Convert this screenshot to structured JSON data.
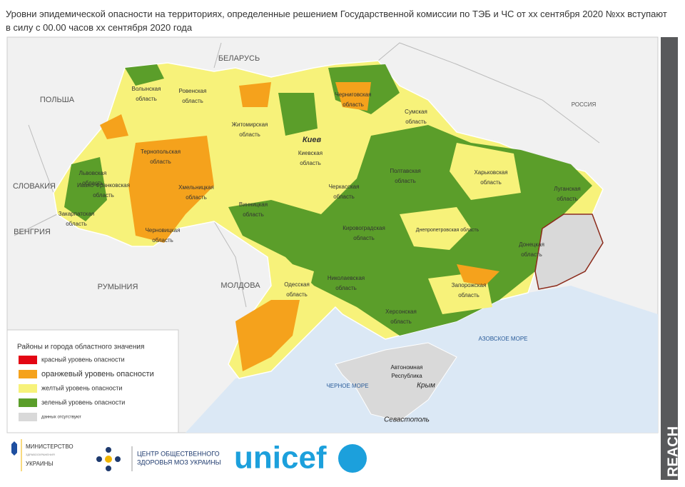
{
  "title": "Уровни эпидемической опасности на территориях, определенные решением Государственной комиссии по ТЭБ и ЧС от хх сентября 2020 №хх вступают в силу с 00.00 часов хх сентября 2020 года",
  "map": {
    "countries": [
      "БЕЛАРУСЬ",
      "ПОЛЬША",
      "РОССИЯ",
      "СЛОВАКИЯ",
      "ВЕНГРИЯ",
      "РУМЫНИЯ",
      "МОЛДОВА"
    ],
    "seas": [
      "АЗОВСКОЕ МОРЕ",
      "ЧЕРНОЕ МОРЕ"
    ],
    "regions": [
      {
        "lines": [
          "Волынская",
          "область"
        ]
      },
      {
        "lines": [
          "Ровенская",
          "область"
        ]
      },
      {
        "lines": [
          "Житомирская",
          "область"
        ]
      },
      {
        "lines": [
          "Киев"
        ]
      },
      {
        "lines": [
          "Киевская",
          "область"
        ]
      },
      {
        "lines": [
          "Черниговская",
          "область"
        ]
      },
      {
        "lines": [
          "Сумская",
          "область"
        ]
      },
      {
        "lines": [
          "Харьковская",
          "область"
        ]
      },
      {
        "lines": [
          "Полтавская",
          "область"
        ]
      },
      {
        "lines": [
          "Луганская",
          "область"
        ]
      },
      {
        "lines": [
          "Донецкая",
          "область"
        ]
      },
      {
        "lines": [
          "Днепропетровская область"
        ]
      },
      {
        "lines": [
          "Запорожская",
          "область"
        ]
      },
      {
        "lines": [
          "Херсонская",
          "область"
        ]
      },
      {
        "lines": [
          "Николаевская",
          "область"
        ]
      },
      {
        "lines": [
          "Одесская",
          "область"
        ]
      },
      {
        "lines": [
          "Кировоградская",
          "область"
        ]
      },
      {
        "lines": [
          "Винницкая",
          "область"
        ]
      },
      {
        "lines": [
          "Черкасская",
          "область"
        ]
      },
      {
        "lines": [
          "Хмельницкая",
          "область"
        ]
      },
      {
        "lines": [
          "Тернопольская",
          "область"
        ]
      },
      {
        "lines": [
          "Львовская",
          "область"
        ]
      },
      {
        "lines": [
          "Ивано-Франковская",
          "область"
        ]
      },
      {
        "lines": [
          "Закарпатская",
          "область"
        ]
      },
      {
        "lines": [
          "Черновицкая",
          "область"
        ]
      }
    ],
    "crimea": [
      "Автономная",
      "Республика",
      "Крым",
      "Севастополь"
    ]
  },
  "legend": {
    "title": "Районы и города областного значения",
    "items": [
      {
        "label": "красный уровень опасности",
        "color": "#e30613"
      },
      {
        "label": "оранжевый уровень опасности",
        "color": "#f5a21c"
      },
      {
        "label": "желтый уровень опасности",
        "color": "#f7f27a"
      },
      {
        "label": "зеленый уровень опасности",
        "color": "#5b9e2a"
      },
      {
        "label": "данных отсутствуют",
        "color": "#d9d9d9"
      }
    ]
  },
  "footer": {
    "ministry": [
      "МИНИСТЕРСТВО",
      "ЗДРАВООХРАНЕНИЯ",
      "УКРАИНЫ"
    ],
    "center": [
      "ЦЕНТР ОБЩЕСТВЕННОГО",
      "ЗДОРОВЬЯ МОЗ УКРАИНЫ"
    ],
    "unicef": "unicef",
    "reach": "REACH"
  }
}
